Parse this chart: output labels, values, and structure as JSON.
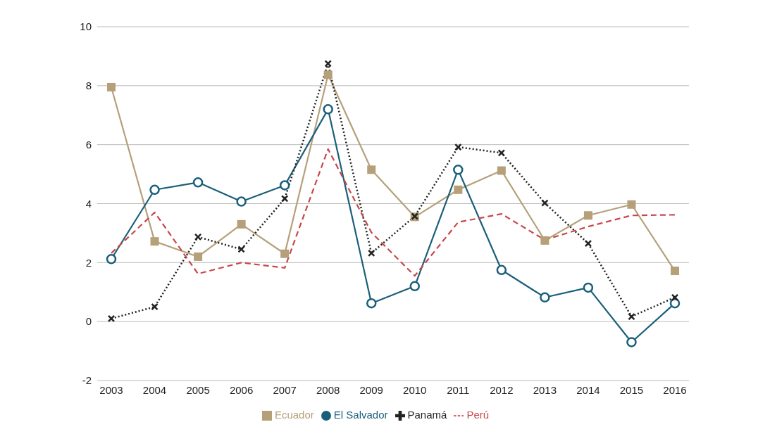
{
  "chart_data": {
    "type": "line",
    "categories": [
      "2003",
      "2004",
      "2005",
      "2006",
      "2007",
      "2008",
      "2009",
      "2010",
      "2011",
      "2012",
      "2013",
      "2014",
      "2015",
      "2016"
    ],
    "series": [
      {
        "name": "Ecuador",
        "color": "#b5a07a",
        "marker": "square",
        "line_style": "solid",
        "values": [
          7.95,
          2.72,
          2.2,
          3.3,
          2.3,
          8.37,
          5.15,
          3.55,
          4.47,
          5.12,
          2.75,
          3.6,
          3.97,
          1.72
        ]
      },
      {
        "name": "El Salvador",
        "color": "#1a5f7a",
        "marker": "circle",
        "line_style": "solid",
        "values": [
          2.12,
          4.47,
          4.72,
          4.07,
          4.62,
          7.2,
          0.62,
          1.2,
          5.15,
          1.75,
          0.82,
          1.15,
          -0.7,
          0.62
        ]
      },
      {
        "name": "Panamá",
        "color": "#222222",
        "marker": "cross",
        "line_style": "dotted",
        "values": [
          0.1,
          0.5,
          2.87,
          2.45,
          4.17,
          8.75,
          2.32,
          3.57,
          5.92,
          5.72,
          4.02,
          2.65,
          0.17,
          0.82
        ]
      },
      {
        "name": "Perú",
        "color": "#c9474a",
        "marker": "none",
        "line_style": "dashed",
        "values": [
          2.32,
          3.7,
          1.62,
          2.0,
          1.82,
          5.85,
          3.02,
          1.55,
          3.37,
          3.65,
          2.77,
          3.22,
          3.6,
          3.62
        ]
      }
    ],
    "ylim": [
      -2,
      10
    ],
    "yticks": [
      -2,
      0,
      2,
      4,
      6,
      8,
      10
    ],
    "grid": "y",
    "legend": "bottom"
  }
}
